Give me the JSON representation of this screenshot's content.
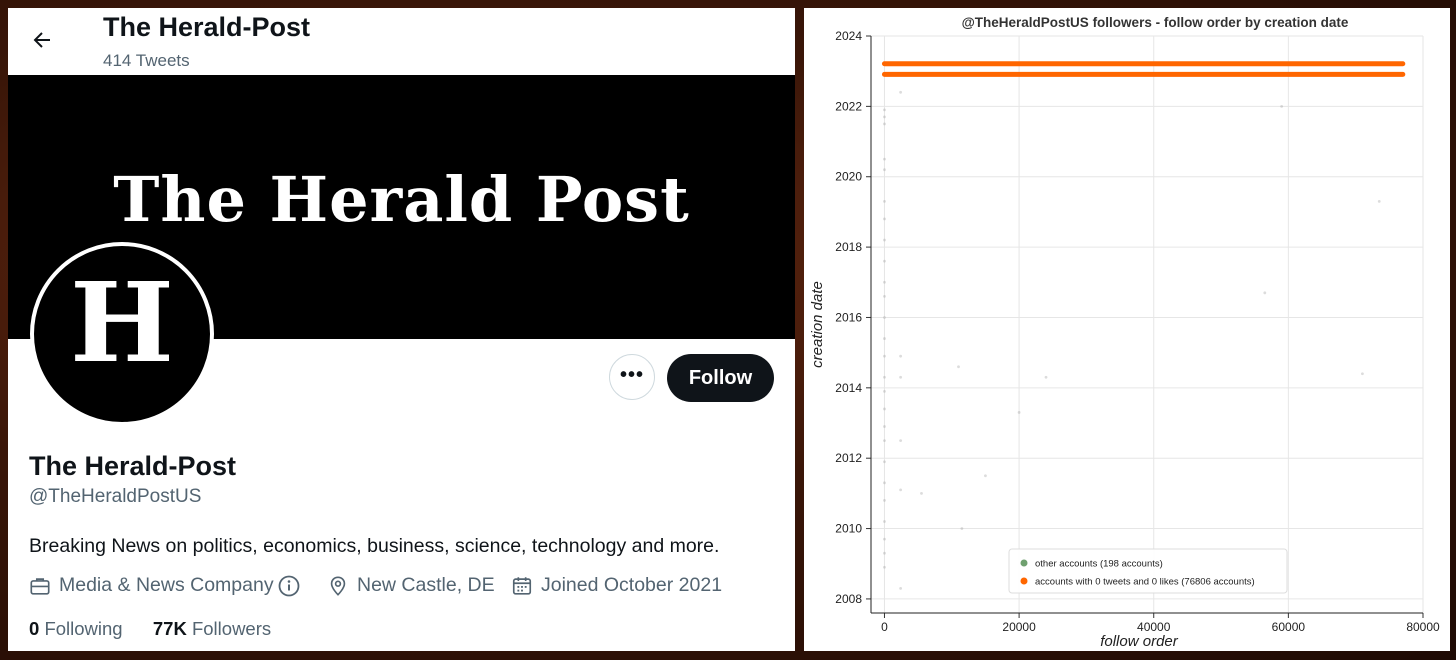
{
  "header": {
    "name": "The Herald-Post",
    "tweet_count": "414 Tweets"
  },
  "banner": {
    "title": "The Herald Post"
  },
  "avatar": {
    "letter": "H"
  },
  "actions": {
    "more_label": "•••",
    "follow_label": "Follow"
  },
  "profile": {
    "display_name": "The Herald-Post",
    "handle": "@TheHeraldPostUS",
    "bio": "Breaking News on politics, economics, business, science, technology and more.",
    "category": "Media & News Company",
    "location": "New Castle, DE",
    "joined": "Joined October 2021",
    "following_count": "0",
    "following_label": "Following",
    "followers_count": "77K",
    "followers_label": "Followers"
  },
  "icons": [
    "back-arrow-icon",
    "briefcase-icon",
    "info-icon",
    "location-pin-icon",
    "calendar-icon"
  ],
  "colors": {
    "follow_button": "#0f1419",
    "secondary_text": "#536471",
    "orange_series": "#ff6600",
    "green_series": "#6fa06f"
  },
  "chart_data": {
    "type": "scatter",
    "title": "@TheHeraldPostUS followers - follow order by creation date",
    "xlabel": "follow order",
    "ylabel": "creation date",
    "xlim": [
      -2000,
      80000
    ],
    "ylim": [
      2007.6,
      2024
    ],
    "x_ticks": [
      "0",
      "20000",
      "40000",
      "60000",
      "80000"
    ],
    "y_ticks": [
      "2008",
      "2010",
      "2012",
      "2014",
      "2016",
      "2018",
      "2020",
      "2022",
      "2024"
    ],
    "grid": true,
    "legend_position": "bottom-center",
    "series": [
      {
        "name": "other accounts (198 accounts)",
        "color": "#6fa06f",
        "points": [
          [
            0,
            2021.9
          ],
          [
            0,
            2021.7
          ],
          [
            0,
            2021.5
          ],
          [
            0,
            2020.5
          ],
          [
            0,
            2020.2
          ],
          [
            0,
            2019.3
          ],
          [
            0,
            2018.8
          ],
          [
            0,
            2018.2
          ],
          [
            0,
            2017.6
          ],
          [
            0,
            2017.0
          ],
          [
            0,
            2016.6
          ],
          [
            0,
            2016.0
          ],
          [
            0,
            2015.4
          ],
          [
            0,
            2014.9
          ],
          [
            0,
            2014.3
          ],
          [
            0,
            2013.9
          ],
          [
            0,
            2013.4
          ],
          [
            0,
            2012.9
          ],
          [
            0,
            2012.5
          ],
          [
            0,
            2011.9
          ],
          [
            0,
            2011.3
          ],
          [
            0,
            2010.8
          ],
          [
            0,
            2010.2
          ],
          [
            0,
            2009.7
          ],
          [
            0,
            2009.3
          ],
          [
            0,
            2008.9
          ],
          [
            2400,
            2022.4
          ],
          [
            2400,
            2014.9
          ],
          [
            2400,
            2014.3
          ],
          [
            2400,
            2012.5
          ],
          [
            2400,
            2011.1
          ],
          [
            2400,
            2008.3
          ],
          [
            5500,
            2011.0
          ],
          [
            11000,
            2014.6
          ],
          [
            11500,
            2010.0
          ],
          [
            15000,
            2011.5
          ],
          [
            20000,
            2013.3
          ],
          [
            24000,
            2014.3
          ],
          [
            56500,
            2016.7
          ],
          [
            59000,
            2022.0
          ],
          [
            71000,
            2014.4
          ],
          [
            73500,
            2019.3
          ]
        ]
      },
      {
        "name": "accounts with 0 tweets and 0 likes (76806 accounts)",
        "color": "#ff6600",
        "bands": [
          {
            "x_from": 0,
            "x_to": 77000,
            "y": 2023.21
          },
          {
            "x_from": 0,
            "x_to": 77000,
            "y": 2022.91
          }
        ]
      }
    ]
  }
}
